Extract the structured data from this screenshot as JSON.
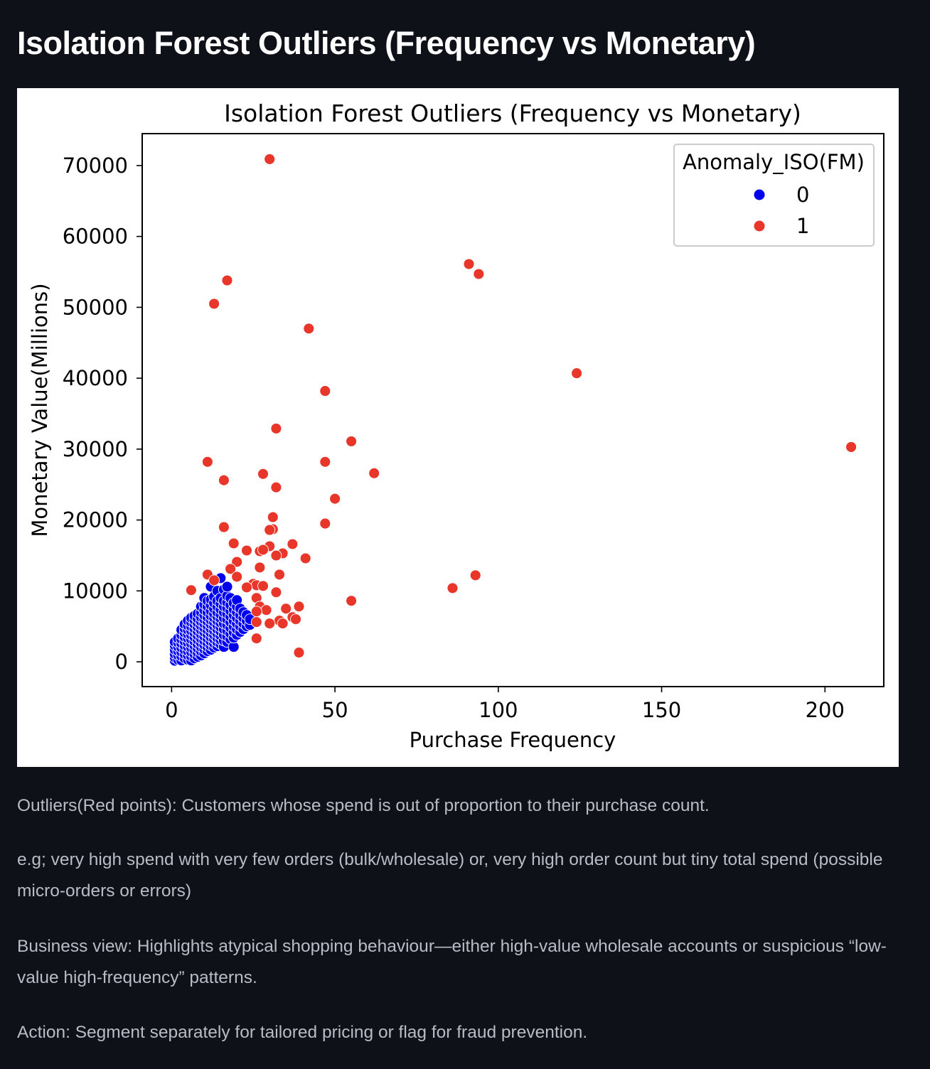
{
  "page": {
    "heading": "Isolation Forest Outliers (Frequency vs Monetary)"
  },
  "captions": [
    "Outliers(Red points): Customers whose spend is out of proportion to their purchase count.",
    "e.g; very high spend with very few orders (bulk/wholesale) or, very high order count but tiny total spend (possible micro-orders or errors)",
    "Business view: Highlights atypical shopping behaviour—either high-value wholesale accounts or suspicious “low-value high-frequency” patterns.",
    "Action: Segment separately for tailored pricing or flag for fraud prevention."
  ],
  "chart_data": {
    "type": "scatter",
    "title": "Isolation Forest Outliers (Frequency vs Monetary)",
    "xlabel": "Purchase Frequency",
    "ylabel": "Monetary Value(Millions)",
    "xlim": [
      -9,
      218
    ],
    "ylim": [
      -3500,
      74500
    ],
    "xticks": [
      0,
      50,
      100,
      150,
      200
    ],
    "yticks": [
      0,
      10000,
      20000,
      30000,
      40000,
      50000,
      60000,
      70000
    ],
    "grid": false,
    "legend": {
      "title": "Anomaly_ISO(FM)",
      "placement": "top-right"
    },
    "colors": {
      "0": "#0000ee",
      "1": "#e8372a"
    },
    "series": [
      {
        "name": "0",
        "color": "#0000ee",
        "points": [
          [
            1,
            150
          ],
          [
            1,
            600
          ],
          [
            1,
            1100
          ],
          [
            1,
            1700
          ],
          [
            1,
            2300
          ],
          [
            1,
            2800
          ],
          [
            2,
            300
          ],
          [
            2,
            900
          ],
          [
            2,
            1500
          ],
          [
            2,
            2100
          ],
          [
            2,
            2700
          ],
          [
            2,
            3300
          ],
          [
            3,
            200
          ],
          [
            3,
            800
          ],
          [
            3,
            1400
          ],
          [
            3,
            2000
          ],
          [
            3,
            2600
          ],
          [
            3,
            3200
          ],
          [
            3,
            3800
          ],
          [
            3,
            4500
          ],
          [
            4,
            500
          ],
          [
            4,
            1100
          ],
          [
            4,
            1700
          ],
          [
            4,
            2300
          ],
          [
            4,
            2900
          ],
          [
            4,
            3500
          ],
          [
            4,
            4100
          ],
          [
            4,
            4700
          ],
          [
            4,
            5300
          ],
          [
            5,
            300
          ],
          [
            5,
            900
          ],
          [
            5,
            1500
          ],
          [
            5,
            2100
          ],
          [
            5,
            2700
          ],
          [
            5,
            3300
          ],
          [
            5,
            3900
          ],
          [
            5,
            4500
          ],
          [
            5,
            5100
          ],
          [
            5,
            5800
          ],
          [
            6,
            200
          ],
          [
            6,
            800
          ],
          [
            6,
            1400
          ],
          [
            6,
            2000
          ],
          [
            6,
            2600
          ],
          [
            6,
            3200
          ],
          [
            6,
            3800
          ],
          [
            6,
            4400
          ],
          [
            6,
            5000
          ],
          [
            6,
            5600
          ],
          [
            6,
            6200
          ],
          [
            7,
            500
          ],
          [
            7,
            1100
          ],
          [
            7,
            1700
          ],
          [
            7,
            2300
          ],
          [
            7,
            2900
          ],
          [
            7,
            3500
          ],
          [
            7,
            4100
          ],
          [
            7,
            4700
          ],
          [
            7,
            5300
          ],
          [
            7,
            5900
          ],
          [
            7,
            6500
          ],
          [
            8,
            700
          ],
          [
            8,
            1300
          ],
          [
            8,
            1900
          ],
          [
            8,
            2500
          ],
          [
            8,
            3100
          ],
          [
            8,
            3700
          ],
          [
            8,
            4300
          ],
          [
            8,
            4900
          ],
          [
            8,
            5500
          ],
          [
            8,
            6100
          ],
          [
            8,
            6800
          ],
          [
            9,
            900
          ],
          [
            9,
            1500
          ],
          [
            9,
            2100
          ],
          [
            9,
            2700
          ],
          [
            9,
            3300
          ],
          [
            9,
            3900
          ],
          [
            9,
            4500
          ],
          [
            9,
            5100
          ],
          [
            9,
            5700
          ],
          [
            9,
            6300
          ],
          [
            9,
            7000
          ],
          [
            9,
            7800
          ],
          [
            10,
            1200
          ],
          [
            10,
            1800
          ],
          [
            10,
            2400
          ],
          [
            10,
            3000
          ],
          [
            10,
            3600
          ],
          [
            10,
            4200
          ],
          [
            10,
            4800
          ],
          [
            10,
            5400
          ],
          [
            10,
            6000
          ],
          [
            10,
            6600
          ],
          [
            10,
            7300
          ],
          [
            10,
            8100
          ],
          [
            10,
            9000
          ],
          [
            11,
            1500
          ],
          [
            11,
            2100
          ],
          [
            11,
            2700
          ],
          [
            11,
            3300
          ],
          [
            11,
            3900
          ],
          [
            11,
            4500
          ],
          [
            11,
            5100
          ],
          [
            11,
            5700
          ],
          [
            11,
            6300
          ],
          [
            11,
            7000
          ],
          [
            11,
            7800
          ],
          [
            11,
            8600
          ],
          [
            12,
            1700
          ],
          [
            12,
            2300
          ],
          [
            12,
            2900
          ],
          [
            12,
            3500
          ],
          [
            12,
            4100
          ],
          [
            12,
            4700
          ],
          [
            12,
            5300
          ],
          [
            12,
            5900
          ],
          [
            12,
            6500
          ],
          [
            12,
            7200
          ],
          [
            12,
            8000
          ],
          [
            12,
            8800
          ],
          [
            12,
            10600
          ],
          [
            13,
            2000
          ],
          [
            13,
            2600
          ],
          [
            13,
            3200
          ],
          [
            13,
            3800
          ],
          [
            13,
            4400
          ],
          [
            13,
            5000
          ],
          [
            13,
            5600
          ],
          [
            13,
            6200
          ],
          [
            13,
            6800
          ],
          [
            13,
            7500
          ],
          [
            13,
            8300
          ],
          [
            13,
            9200
          ],
          [
            14,
            2200
          ],
          [
            14,
            2800
          ],
          [
            14,
            3400
          ],
          [
            14,
            4000
          ],
          [
            14,
            4600
          ],
          [
            14,
            5200
          ],
          [
            14,
            5800
          ],
          [
            14,
            6400
          ],
          [
            14,
            7000
          ],
          [
            14,
            7800
          ],
          [
            14,
            8600
          ],
          [
            14,
            10000
          ],
          [
            15,
            2500
          ],
          [
            15,
            3100
          ],
          [
            15,
            3700
          ],
          [
            15,
            4300
          ],
          [
            15,
            4900
          ],
          [
            15,
            5500
          ],
          [
            15,
            6100
          ],
          [
            15,
            6700
          ],
          [
            15,
            7400
          ],
          [
            15,
            8200
          ],
          [
            15,
            9000
          ],
          [
            15,
            11800
          ],
          [
            16,
            2100
          ],
          [
            16,
            3000
          ],
          [
            16,
            3800
          ],
          [
            16,
            4600
          ],
          [
            16,
            5400
          ],
          [
            16,
            6200
          ],
          [
            16,
            7000
          ],
          [
            16,
            7800
          ],
          [
            16,
            8600
          ],
          [
            16,
            10200
          ],
          [
            17,
            2800
          ],
          [
            17,
            3600
          ],
          [
            17,
            4400
          ],
          [
            17,
            5200
          ],
          [
            17,
            6000
          ],
          [
            17,
            6800
          ],
          [
            17,
            7600
          ],
          [
            17,
            8400
          ],
          [
            17,
            9300
          ],
          [
            17,
            10600
          ],
          [
            18,
            3200
          ],
          [
            18,
            4000
          ],
          [
            18,
            4800
          ],
          [
            18,
            5600
          ],
          [
            18,
            6400
          ],
          [
            18,
            7200
          ],
          [
            18,
            8000
          ],
          [
            18,
            9000
          ],
          [
            19,
            2100
          ],
          [
            19,
            3400
          ],
          [
            19,
            4200
          ],
          [
            19,
            5000
          ],
          [
            19,
            5800
          ],
          [
            19,
            6600
          ],
          [
            19,
            7400
          ],
          [
            19,
            8300
          ],
          [
            20,
            3800
          ],
          [
            20,
            4600
          ],
          [
            20,
            5400
          ],
          [
            20,
            6200
          ],
          [
            20,
            7000
          ],
          [
            20,
            7800
          ],
          [
            20,
            8700
          ],
          [
            21,
            4200
          ],
          [
            21,
            5000
          ],
          [
            21,
            5800
          ],
          [
            21,
            6600
          ],
          [
            21,
            7500
          ],
          [
            22,
            4600
          ],
          [
            22,
            5400
          ],
          [
            22,
            6200
          ],
          [
            22,
            7000
          ],
          [
            23,
            5000
          ],
          [
            23,
            5800
          ],
          [
            23,
            6600
          ],
          [
            24,
            5200
          ],
          [
            24,
            6000
          ]
        ]
      },
      {
        "name": "1",
        "color": "#e8372a",
        "points": [
          [
            30,
            70900
          ],
          [
            91,
            56100
          ],
          [
            94,
            54700
          ],
          [
            17,
            53800
          ],
          [
            13,
            50500
          ],
          [
            42,
            47000
          ],
          [
            124,
            40700
          ],
          [
            47,
            38200
          ],
          [
            32,
            32900
          ],
          [
            55,
            31100
          ],
          [
            208,
            30300
          ],
          [
            11,
            28200
          ],
          [
            47,
            28200
          ],
          [
            62,
            26600
          ],
          [
            28,
            26500
          ],
          [
            16,
            25600
          ],
          [
            32,
            24600
          ],
          [
            50,
            23000
          ],
          [
            31,
            20400
          ],
          [
            16,
            19000
          ],
          [
            47,
            19500
          ],
          [
            31,
            18700
          ],
          [
            30,
            18600
          ],
          [
            19,
            16700
          ],
          [
            37,
            16600
          ],
          [
            23,
            15700
          ],
          [
            30,
            16300
          ],
          [
            27,
            15600
          ],
          [
            28,
            15800
          ],
          [
            34,
            15300
          ],
          [
            32,
            15000
          ],
          [
            41,
            14600
          ],
          [
            20,
            14100
          ],
          [
            18,
            13100
          ],
          [
            27,
            13300
          ],
          [
            11,
            12300
          ],
          [
            33,
            12300
          ],
          [
            93,
            12200
          ],
          [
            20,
            12000
          ],
          [
            13,
            11500
          ],
          [
            25,
            11000
          ],
          [
            26,
            10800
          ],
          [
            28,
            10700
          ],
          [
            23,
            10500
          ],
          [
            6,
            10100
          ],
          [
            86,
            10400
          ],
          [
            32,
            9800
          ],
          [
            26,
            9000
          ],
          [
            55,
            8600
          ],
          [
            27,
            7800
          ],
          [
            39,
            7800
          ],
          [
            35,
            7500
          ],
          [
            29,
            7300
          ],
          [
            26,
            7100
          ],
          [
            37,
            6300
          ],
          [
            38,
            6000
          ],
          [
            33,
            5800
          ],
          [
            26,
            5600
          ],
          [
            30,
            5400
          ],
          [
            34,
            5400
          ],
          [
            26,
            3300
          ],
          [
            39,
            1300
          ]
        ]
      }
    ]
  }
}
